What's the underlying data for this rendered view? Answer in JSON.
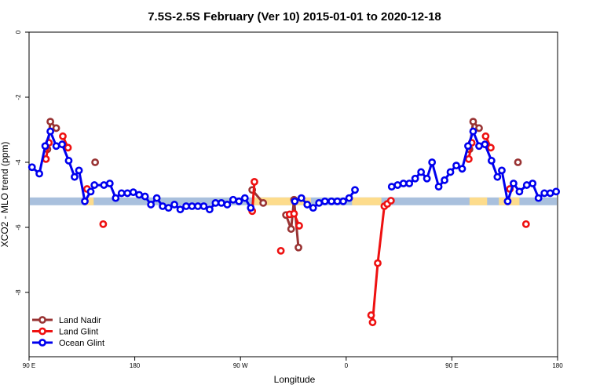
{
  "chart_data": {
    "type": "line",
    "title": "7.5S-2.5S February (Ver 10)   2015-01-01 to 2020-12-18",
    "xlabel": "Longitude",
    "ylabel": "XCO2 - MLO trend (ppm)",
    "xlim": [
      0,
      360
    ],
    "ylim": [
      -10,
      0
    ],
    "y_reversed": true,
    "x_ticks": [
      {
        "x": 0,
        "label": "90 E"
      },
      {
        "x": 72,
        "label": "180"
      },
      {
        "x": 144,
        "label": "90 W"
      },
      {
        "x": 216,
        "label": "0"
      },
      {
        "x": 288,
        "label": "90 E"
      },
      {
        "x": 360,
        "label": "180"
      }
    ],
    "y_ticks": [
      0,
      -2,
      -4,
      -6,
      -8
    ],
    "legend_position": "bottom-left",
    "band": {
      "y_center": -5.2,
      "half_width": 0.12,
      "ocean_color": "#a9c0dd",
      "land_color": "#fddc8c",
      "land_spans": [
        [
          38,
          44
        ],
        [
          152,
          192
        ],
        [
          220,
          240
        ],
        [
          300,
          312
        ],
        [
          320,
          334
        ]
      ]
    },
    "series": [
      {
        "name": "Land Nadir",
        "color": "#993333",
        "segments": [
          [
            [
              12.5,
              -3.6
            ],
            [
              14.5,
              -2.75
            ],
            [
              18.5,
              -2.95
            ]
          ],
          [
            [
              45,
              -4.0
            ]
          ],
          [
            [
              152,
              -4.85
            ],
            [
              159.5,
              -5.25
            ]
          ],
          [
            [
              175,
              -5.62
            ],
            [
              178.5,
              -6.05
            ],
            [
              180.5,
              -5.15
            ],
            [
              183.5,
              -6.62
            ]
          ],
          [
            [
              300,
              -3.6
            ],
            [
              302.5,
              -2.75
            ],
            [
              306.5,
              -2.95
            ]
          ],
          [
            [
              333,
              -4.0
            ]
          ]
        ]
      },
      {
        "name": "Land Glint",
        "color": "#ee1111",
        "segments": [
          [
            [
              11.5,
              -3.9
            ],
            [
              13.5,
              -3.4
            ]
          ],
          [
            [
              23,
              -3.2
            ],
            [
              26.5,
              -3.55
            ]
          ],
          [
            [
              39.5,
              -4.82
            ]
          ],
          [
            [
              50.5,
              -5.9
            ]
          ],
          [
            [
              152,
              -5.5
            ],
            [
              153.5,
              -4.6
            ]
          ],
          [
            [
              171.5,
              -6.72
            ]
          ],
          [
            [
              177.5,
              -5.6
            ],
            [
              180.5,
              -5.58
            ],
            [
              184,
              -5.95
            ]
          ],
          [
            [
              233,
              -8.7
            ],
            [
              234,
              -8.92
            ],
            [
              237.5,
              -7.1
            ],
            [
              242,
              -5.35
            ],
            [
              244,
              -5.28
            ],
            [
              246.5,
              -5.18
            ]
          ],
          [
            [
              299.5,
              -3.9
            ],
            [
              301.5,
              -3.4
            ]
          ],
          [
            [
              311,
              -3.2
            ],
            [
              314.5,
              -3.55
            ]
          ],
          [
            [
              327.5,
              -4.82
            ]
          ],
          [
            [
              338.5,
              -5.9
            ]
          ]
        ]
      },
      {
        "name": "Ocean Glint",
        "color": "#0000ee",
        "segments": [
          [
            [
              2,
              -4.15
            ],
            [
              7,
              -4.35
            ],
            [
              11,
              -3.5
            ],
            [
              14.5,
              -3.05
            ],
            [
              18.5,
              -3.5
            ],
            [
              22.5,
              -3.45
            ],
            [
              27,
              -3.95
            ],
            [
              31,
              -4.45
            ],
            [
              34,
              -4.25
            ],
            [
              38,
              -5.2
            ],
            [
              42,
              -4.9
            ],
            [
              44.5,
              -4.7
            ],
            [
              51,
              -4.7
            ],
            [
              55,
              -4.65
            ],
            [
              59,
              -5.1
            ],
            [
              63,
              -4.95
            ],
            [
              67,
              -4.95
            ],
            [
              71,
              -4.92
            ],
            [
              75,
              -5.0
            ],
            [
              79,
              -5.05
            ],
            [
              83,
              -5.3
            ],
            [
              87,
              -5.1
            ],
            [
              91,
              -5.35
            ],
            [
              95,
              -5.4
            ],
            [
              99,
              -5.3
            ],
            [
              103,
              -5.45
            ],
            [
              107,
              -5.35
            ],
            [
              111,
              -5.35
            ],
            [
              115,
              -5.35
            ],
            [
              119,
              -5.35
            ],
            [
              123,
              -5.45
            ],
            [
              127,
              -5.25
            ],
            [
              131,
              -5.25
            ],
            [
              135,
              -5.3
            ],
            [
              139,
              -5.15
            ],
            [
              143,
              -5.2
            ],
            [
              147,
              -5.1
            ],
            [
              151,
              -5.4
            ]
          ],
          [
            [
              181,
              -5.2
            ],
            [
              185.5,
              -5.1
            ],
            [
              189.5,
              -5.3
            ],
            [
              193.5,
              -5.4
            ],
            [
              197.5,
              -5.25
            ],
            [
              201.5,
              -5.2
            ],
            [
              206,
              -5.2
            ],
            [
              210,
              -5.2
            ],
            [
              214,
              -5.2
            ],
            [
              218,
              -5.1
            ],
            [
              222,
              -4.85
            ]
          ],
          [
            [
              247,
              -4.75
            ],
            [
              251,
              -4.7
            ],
            [
              255,
              -4.65
            ],
            [
              259,
              -4.65
            ],
            [
              263,
              -4.5
            ],
            [
              267,
              -4.3
            ],
            [
              271,
              -4.5
            ],
            [
              274.5,
              -4.0
            ],
            [
              279,
              -4.75
            ],
            [
              283,
              -4.55
            ],
            [
              287,
              -4.3
            ],
            [
              291,
              -4.1
            ],
            [
              295,
              -4.2
            ],
            [
              299,
              -3.5
            ],
            [
              302.5,
              -3.05
            ],
            [
              306.5,
              -3.5
            ],
            [
              310.5,
              -3.45
            ],
            [
              315,
              -3.95
            ],
            [
              319,
              -4.45
            ],
            [
              322,
              -4.25
            ],
            [
              326,
              -5.2
            ],
            [
              330,
              -4.65
            ],
            [
              334,
              -4.9
            ],
            [
              339,
              -4.7
            ],
            [
              343,
              -4.65
            ],
            [
              347,
              -5.1
            ],
            [
              351,
              -4.95
            ],
            [
              355,
              -4.95
            ],
            [
              359,
              -4.9
            ]
          ]
        ]
      }
    ]
  }
}
